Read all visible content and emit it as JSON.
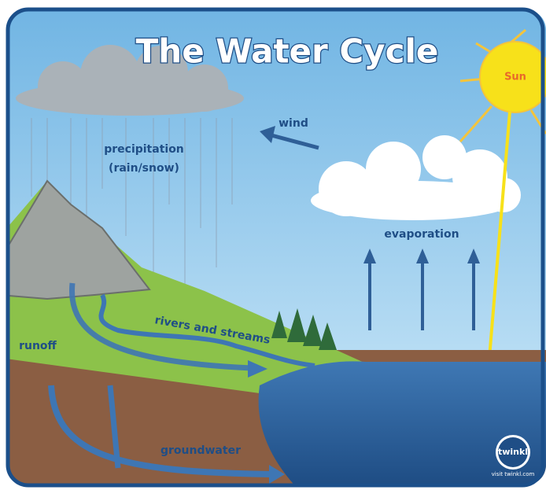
{
  "title": "The Water Cycle",
  "labels": {
    "sun": "Sun",
    "wind": "wind",
    "precipitation": [
      "precipitation",
      "(rain/snow)"
    ],
    "evaporation": "evaporation",
    "rivers": "rivers and streams",
    "runoff": "runoff",
    "groundwater": "groundwater"
  },
  "logo": {
    "name": "twinkl",
    "url": "visit twinkl.com"
  }
}
